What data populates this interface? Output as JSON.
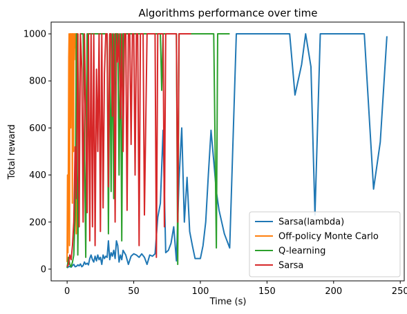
{
  "chart_data": {
    "type": "line",
    "title": "Algorithms performance over time",
    "xlabel": "Time (s)",
    "ylabel": "Total reward",
    "xlim": [
      -12,
      253
    ],
    "ylim": [
      -50,
      1050
    ],
    "xticks": [
      0,
      50,
      100,
      150,
      200,
      250
    ],
    "yticks": [
      0,
      200,
      400,
      600,
      800,
      1000
    ],
    "grid": false,
    "legend": "lower-right",
    "series": [
      {
        "name": "Sarsa(lambda)",
        "color": "#1f77b4",
        "x": [
          0,
          1,
          2,
          3,
          4,
          5,
          6,
          7,
          8,
          9,
          10,
          11,
          12,
          13,
          14,
          15,
          16,
          17,
          18,
          19,
          20,
          21,
          22,
          23,
          24,
          25,
          26,
          27,
          28,
          29,
          30,
          31,
          32,
          33,
          34,
          35,
          36,
          37,
          38,
          39,
          40,
          41,
          42,
          44,
          46,
          48,
          50,
          52,
          54,
          56,
          58,
          60,
          62,
          64,
          66,
          68,
          70,
          72,
          74,
          76,
          78,
          80,
          82,
          84,
          86,
          88,
          90,
          92,
          94,
          96,
          98,
          100,
          102,
          104,
          106,
          108,
          110,
          112,
          114,
          118,
          122,
          127,
          132,
          136,
          151,
          167,
          171,
          176,
          179,
          183,
          186,
          190,
          206,
          223,
          230,
          235,
          240
        ],
        "y": [
          5,
          10,
          12,
          8,
          15,
          20,
          10,
          12,
          18,
          14,
          22,
          10,
          15,
          30,
          20,
          25,
          18,
          45,
          60,
          40,
          30,
          55,
          35,
          60,
          40,
          50,
          20,
          60,
          45,
          55,
          50,
          120,
          40,
          70,
          55,
          80,
          45,
          120,
          100,
          30,
          60,
          40,
          80,
          60,
          20,
          55,
          65,
          60,
          50,
          65,
          50,
          20,
          60,
          55,
          65,
          220,
          280,
          590,
          70,
          80,
          110,
          180,
          35,
          380,
          600,
          200,
          390,
          160,
          100,
          45,
          45,
          45,
          100,
          200,
          400,
          590,
          460,
          330,
          250,
          150,
          90,
          1000,
          1000,
          1000,
          1000,
          1000,
          740,
          870,
          1000,
          860,
          230,
          1000,
          1000,
          1000,
          340,
          540,
          990
        ]
      },
      {
        "name": "Off-policy Monte Carlo",
        "color": "#ff7f0e",
        "x": [
          0,
          0.3,
          0.6,
          0.9,
          1.2,
          1.5,
          1.8,
          2.1,
          2.4,
          2.7,
          3.0,
          3.3,
          3.6,
          3.9,
          4.2,
          4.5,
          4.8,
          5.1,
          5.4,
          5.7,
          6.0,
          6.3,
          6.6,
          6.9,
          7.2,
          7.5,
          7.8,
          8.1
        ],
        "y": [
          30,
          400,
          70,
          430,
          900,
          1000,
          100,
          980,
          1000,
          600,
          1000,
          950,
          1000,
          280,
          1000,
          1000,
          500,
          1000,
          890,
          1000,
          1000,
          940,
          1000,
          150,
          1000,
          1000,
          600,
          1000
        ]
      },
      {
        "name": "Q-learning",
        "color": "#2ca02c",
        "x": [
          0,
          1,
          2,
          3,
          4,
          5,
          6,
          7,
          8,
          10,
          12,
          14,
          15,
          16,
          18,
          20,
          22,
          25,
          28,
          30,
          31,
          32,
          33,
          34,
          35,
          36,
          38,
          39,
          40,
          41,
          42,
          43,
          44,
          46,
          50,
          55,
          60,
          65,
          70,
          71,
          72,
          75,
          80,
          82,
          83,
          84,
          85,
          90,
          95,
          100,
          105,
          110,
          112,
          113,
          114,
          116,
          120,
          122
        ],
        "y": [
          5,
          50,
          20,
          10,
          30,
          60,
          230,
          1000,
          60,
          1000,
          1000,
          50,
          1000,
          1000,
          1000,
          1000,
          1000,
          1000,
          1000,
          1000,
          150,
          1000,
          330,
          1000,
          300,
          1000,
          1000,
          400,
          1000,
          120,
          1000,
          1000,
          1000,
          1000,
          1000,
          1000,
          1000,
          1000,
          1000,
          760,
          1000,
          1000,
          1000,
          1000,
          20,
          1000,
          1000,
          1000,
          1000,
          1000,
          1000,
          1000,
          90,
          1000,
          1000,
          1000,
          1000,
          1000
        ]
      },
      {
        "name": "Sarsa",
        "color": "#d62728",
        "x": [
          0,
          1,
          2,
          3,
          4,
          5,
          6,
          7,
          8,
          9,
          10,
          11,
          12,
          13,
          14,
          15,
          16,
          17,
          18,
          19,
          20,
          21,
          22,
          23,
          24,
          25,
          26,
          27,
          28,
          29,
          30,
          31,
          32,
          33,
          34,
          35,
          36,
          37,
          38,
          39,
          40,
          41,
          42,
          43,
          44,
          45,
          46,
          47,
          48,
          49,
          50,
          51,
          52,
          53,
          54,
          55,
          56,
          57,
          58,
          60,
          62,
          64,
          66,
          67,
          68,
          70,
          72,
          73,
          74,
          76,
          78,
          80,
          82,
          83,
          84,
          86,
          88,
          90,
          93
        ],
        "y": [
          10,
          20,
          60,
          40,
          100,
          200,
          520,
          300,
          1000,
          180,
          1000,
          850,
          200,
          1000,
          650,
          240,
          1000,
          120,
          1000,
          180,
          1000,
          100,
          850,
          500,
          1000,
          160,
          1000,
          260,
          830,
          1000,
          1000,
          350,
          1000,
          1000,
          650,
          1000,
          200,
          1000,
          880,
          1000,
          640,
          1000,
          500,
          1000,
          1000,
          250,
          1000,
          1000,
          530,
          1000,
          1000,
          400,
          1000,
          1000,
          100,
          1000,
          1000,
          1000,
          230,
          1000,
          1000,
          1000,
          1000,
          50,
          1000,
          1000,
          1000,
          180,
          1000,
          1000,
          1000,
          1000,
          1000,
          200,
          1000,
          1000,
          1000,
          1000,
          1000
        ]
      }
    ]
  }
}
